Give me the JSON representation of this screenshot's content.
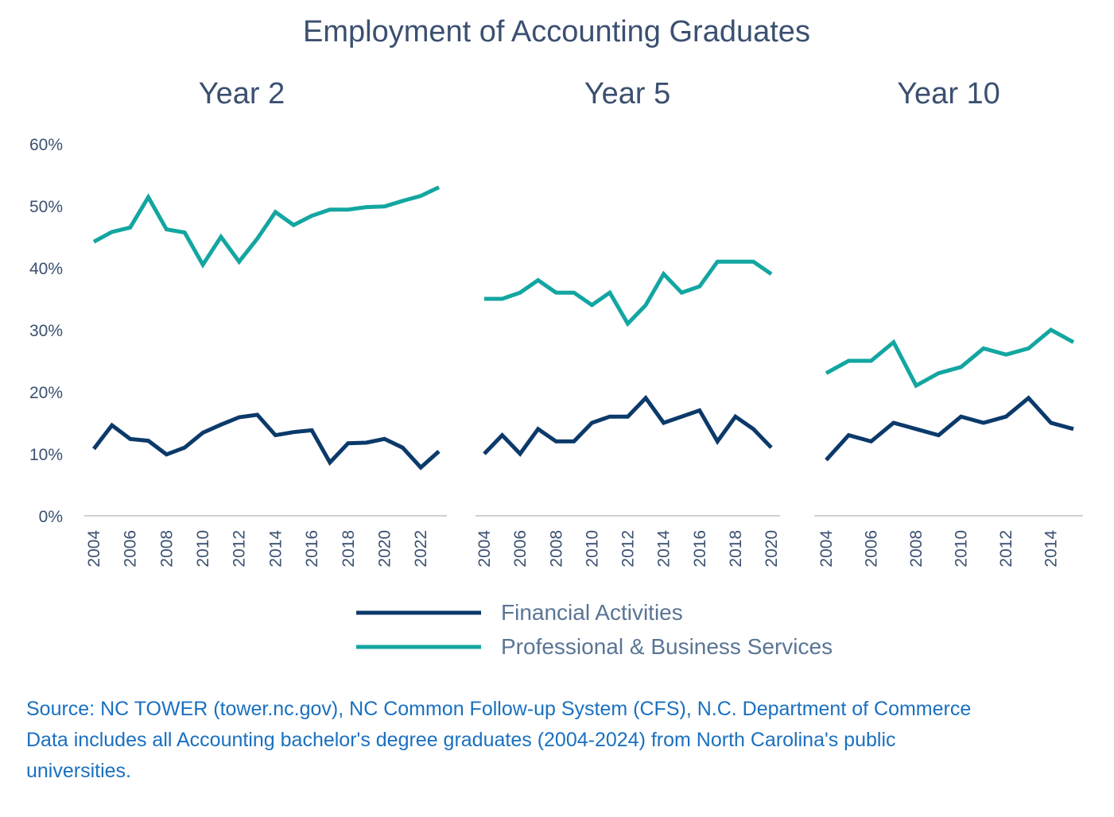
{
  "chart_data": {
    "type": "line",
    "title": "Employment of Accounting Graduates",
    "y_ticks": [
      "0%",
      "10%",
      "20%",
      "30%",
      "40%",
      "50%",
      "60%"
    ],
    "ylim": [
      0,
      60
    ],
    "grid": false,
    "legend": {
      "placement": "bottom-center",
      "entries": [
        {
          "name": "Financial Activities",
          "color": "#0b3a6a"
        },
        {
          "name": "Professional & Business Services",
          "color": "#13a6a1"
        }
      ]
    },
    "panels": [
      {
        "title": "Year 2",
        "x": [
          2004,
          2005,
          2006,
          2007,
          2008,
          2009,
          2010,
          2011,
          2012,
          2013,
          2014,
          2015,
          2016,
          2017,
          2018,
          2019,
          2020,
          2021,
          2022,
          2023
        ],
        "x_ticks": [
          "2004",
          "2006",
          "2008",
          "2010",
          "2012",
          "2014",
          "2016",
          "2018",
          "2020",
          "2022"
        ],
        "series": [
          {
            "name": "Financial Activities",
            "values": [
              10.8,
              14.6,
              12.4,
              12.1,
              9.9,
              11.0,
              13.4,
              14.7,
              15.9,
              16.3,
              13.0,
              13.5,
              13.8,
              8.6,
              11.7,
              11.8,
              12.4,
              11.0,
              7.8,
              10.4
            ]
          },
          {
            "name": "Professional & Business Services",
            "values": [
              44.2,
              45.8,
              46.5,
              51.4,
              46.2,
              45.7,
              40.5,
              45.0,
              41.0,
              44.7,
              49.0,
              46.9,
              48.4,
              49.4,
              49.4,
              49.8,
              49.9,
              50.8,
              51.6,
              53.0
            ]
          }
        ]
      },
      {
        "title": "Year 5",
        "x": [
          2004,
          2005,
          2006,
          2007,
          2008,
          2009,
          2010,
          2011,
          2012,
          2013,
          2014,
          2015,
          2016,
          2017,
          2018,
          2019,
          2020
        ],
        "x_ticks": [
          "2004",
          "2006",
          "2008",
          "2010",
          "2012",
          "2014",
          "2016",
          "2018",
          "2020"
        ],
        "series": [
          {
            "name": "Financial Activities",
            "values": [
              10,
              13,
              10,
              14,
              12,
              12,
              15,
              16,
              16,
              19,
              15,
              16,
              17,
              12,
              16,
              14,
              11
            ]
          },
          {
            "name": "Professional & Business Services",
            "values": [
              35,
              35,
              36,
              38,
              36,
              36,
              34,
              36,
              31,
              34,
              39,
              36,
              37,
              41,
              41,
              41,
              39
            ]
          }
        ]
      },
      {
        "title": "Year 10",
        "x": [
          2004,
          2005,
          2006,
          2007,
          2008,
          2009,
          2010,
          2011,
          2012,
          2013,
          2014,
          2015
        ],
        "x_ticks": [
          "2004",
          "2006",
          "2008",
          "2010",
          "2012",
          "2014"
        ],
        "series": [
          {
            "name": "Financial Activities",
            "values": [
              9,
              13,
              12,
              15,
              14,
              13,
              16,
              15,
              16,
              19,
              15,
              14
            ]
          },
          {
            "name": "Professional & Business Services",
            "values": [
              23,
              25,
              25,
              28,
              21,
              23,
              24,
              27,
              26,
              27,
              30,
              28
            ]
          }
        ]
      }
    ]
  },
  "source": {
    "line1": "Source: NC TOWER (tower.nc.gov), NC Common Follow-up System (CFS), N.C. Department of Commerce",
    "line2": "Data includes all Accounting bachelor's degree graduates (2004-2024) from North Carolina's public",
    "line3": "universities."
  }
}
